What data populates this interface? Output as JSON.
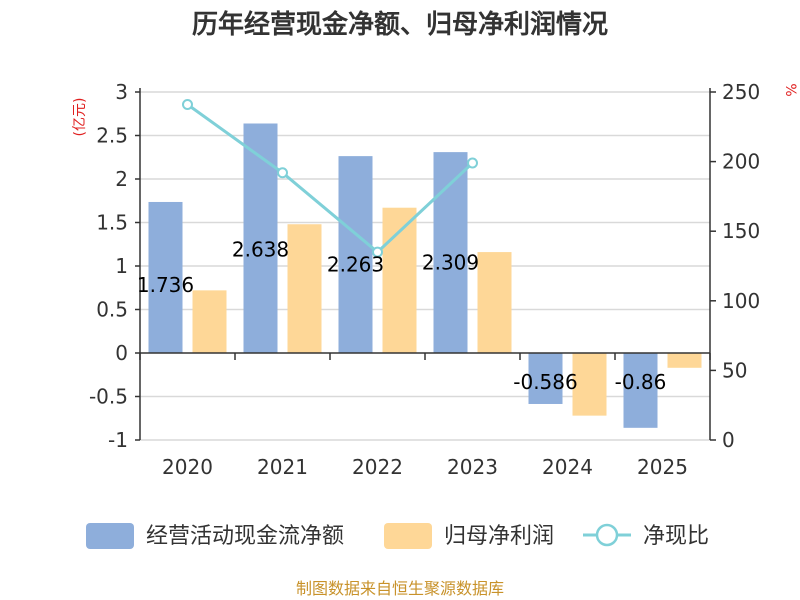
{
  "chart_data": {
    "type": "bar",
    "title": "历年经营现金净额、归母净利润情况",
    "categories": [
      "2020",
      "2021",
      "2022",
      "2023",
      "2024",
      "2025"
    ],
    "ylabel": "(亿元)",
    "y2label": "%",
    "ylim": [
      -1,
      3
    ],
    "y2lim": [
      0,
      250
    ],
    "yticks": [
      "3",
      "2.5",
      "2",
      "1.5",
      "1",
      "0.5",
      "0",
      "-0.5",
      "-1"
    ],
    "y2ticks": [
      "250",
      "200",
      "150",
      "100",
      "50",
      "0"
    ],
    "series": [
      {
        "name": "经营活动现金流净额",
        "kind": "bar",
        "color": "#8eaedb",
        "values": [
          1.736,
          2.638,
          2.263,
          2.309,
          -0.586,
          -0.86
        ],
        "labels": [
          "1.736",
          "2.638",
          "2.263",
          "2.309",
          "-0.586",
          "-0.86"
        ]
      },
      {
        "name": "归母净利润",
        "kind": "bar",
        "color": "#fed797",
        "values": [
          0.72,
          1.48,
          1.67,
          1.16,
          -0.72,
          -0.17
        ]
      },
      {
        "name": "净现比",
        "kind": "line",
        "axis": "right",
        "color": "#7fd0d8",
        "values": [
          241,
          192,
          135,
          199,
          null,
          null
        ]
      }
    ],
    "legend": [
      "经营活动现金流净额",
      "归母净利润",
      "净现比"
    ],
    "source": "制图数据来自恒生聚源数据库",
    "colors": {
      "title": "#333333",
      "axis_unit": "#e02020",
      "source": "#c8922a",
      "grid": "#d9d9d9",
      "axis": "#333333"
    }
  }
}
